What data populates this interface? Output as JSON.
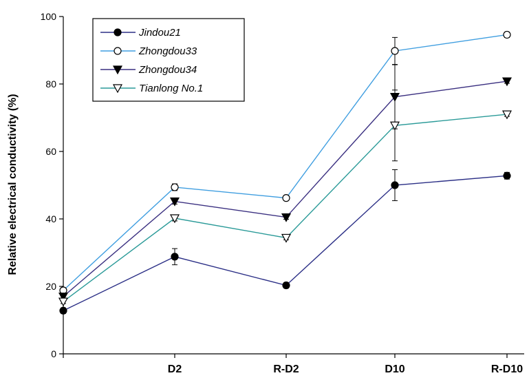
{
  "chart_data": {
    "type": "line",
    "ylabel": "Relative electrical conductivity (%)",
    "ylim": [
      0,
      100
    ],
    "yticks": [
      0,
      20,
      40,
      60,
      80,
      100
    ],
    "categories": [
      "",
      "D2",
      "R-D2",
      "D10",
      "R-D10"
    ],
    "legend_position": "top-left",
    "grid": false,
    "series": [
      {
        "name": "Jindou21",
        "color": "#2b2f86",
        "marker": "filled-circle",
        "values": [
          12.8,
          28.8,
          20.3,
          50.0,
          52.8
        ],
        "errors": [
          0.8,
          2.4,
          0.8,
          4.6,
          1.0
        ]
      },
      {
        "name": "Zhongdou33",
        "color": "#3f9ee0",
        "marker": "open-circle",
        "values": [
          18.8,
          49.4,
          46.2,
          89.8,
          94.6
        ],
        "errors": [
          0.8,
          1.0,
          0.6,
          4.0,
          0.8
        ]
      },
      {
        "name": "Zhongdou34",
        "color": "#3a2f80",
        "marker": "filled-triangle-down",
        "values": [
          17.0,
          45.2,
          40.5,
          76.2,
          80.8
        ],
        "errors": [
          0.6,
          0.8,
          0.6,
          9.5,
          0.6
        ]
      },
      {
        "name": "Tianlong No.1",
        "color": "#2a9a98",
        "marker": "open-triangle-down",
        "values": [
          15.5,
          40.2,
          34.4,
          67.7,
          71.0
        ],
        "errors": [
          0.6,
          0.8,
          0.6,
          10.5,
          0.6
        ]
      }
    ]
  }
}
